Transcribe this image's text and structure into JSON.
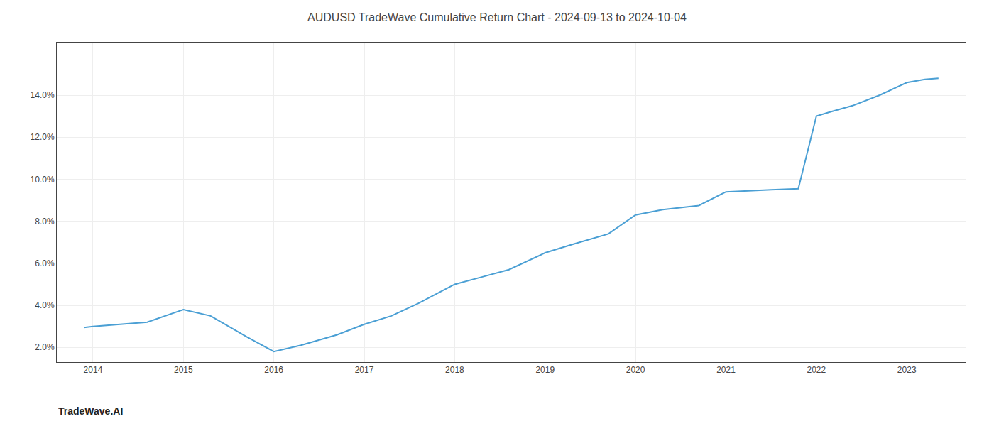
{
  "chart_data": {
    "type": "line",
    "title": "AUDUSD TradeWave Cumulative Return Chart - 2024-09-13 to 2024-10-04",
    "annotations": [
      "TradeWave.AI"
    ],
    "x": [
      2013.9,
      2014.0,
      2014.3,
      2014.6,
      2015.0,
      2015.3,
      2015.7,
      2016.0,
      2016.3,
      2016.7,
      2017.0,
      2017.3,
      2017.6,
      2018.0,
      2018.3,
      2018.6,
      2019.0,
      2019.3,
      2019.7,
      2020.0,
      2020.3,
      2020.7,
      2021.0,
      2021.2,
      2021.5,
      2021.8,
      2022.0,
      2022.15,
      2022.4,
      2022.7,
      2022.9,
      2023.0,
      2023.2,
      2023.35
    ],
    "values": [
      2.95,
      3.0,
      3.1,
      3.2,
      3.8,
      3.5,
      2.5,
      1.8,
      2.1,
      2.6,
      3.1,
      3.5,
      4.1,
      5.0,
      5.35,
      5.7,
      6.5,
      6.9,
      7.4,
      8.3,
      8.55,
      8.75,
      9.4,
      9.45,
      9.5,
      9.55,
      13.0,
      13.2,
      13.5,
      14.0,
      14.4,
      14.6,
      14.75,
      14.8
    ],
    "color": "#4a9fd4",
    "xlim": [
      2013.6,
      2023.65
    ],
    "xticks": [
      2014,
      2015,
      2016,
      2017,
      2018,
      2019,
      2020,
      2021,
      2022,
      2023
    ],
    "ylim": [
      1.3,
      16.5
    ],
    "yticks": [
      {
        "value": 2.0,
        "label": "2.0%"
      },
      {
        "value": 4.0,
        "label": "4.0%"
      },
      {
        "value": 6.0,
        "label": "6.0%"
      },
      {
        "value": 8.0,
        "label": "8.0%"
      },
      {
        "value": 10.0,
        "label": "10.0%"
      },
      {
        "value": 12.0,
        "label": "12.0%"
      },
      {
        "value": 14.0,
        "label": "14.0%"
      }
    ],
    "grid": true
  }
}
